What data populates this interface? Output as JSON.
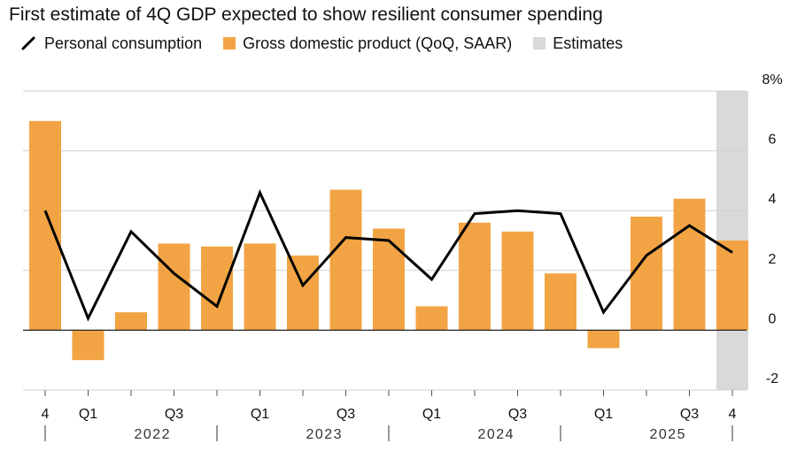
{
  "title": "First estimate of 4Q GDP expected to show resilient consumer spending",
  "legend": {
    "consumption_label": "Personal consumption",
    "gdp_label": "Gross domestic product (QoQ, SAAR)",
    "estimates_label": "Estimates"
  },
  "colors": {
    "gdp_bar": "#f2a444",
    "consumption_line": "#000000",
    "estimate_shade": "#d9d9d9",
    "gridline": "#d0d0d0",
    "zero_line": "#222222"
  },
  "chart_data": {
    "type": "bar",
    "title": "First estimate of 4Q GDP expected to show resilient consumer spending",
    "xlabel": "",
    "ylabel": "",
    "ylim": [
      -2,
      8
    ],
    "y_ticks": [
      "8%",
      "6",
      "4",
      "2",
      "0",
      "-2"
    ],
    "y_tick_values": [
      8,
      6,
      4,
      2,
      0,
      -2
    ],
    "categories": [
      "4Q21",
      "1Q22",
      "2Q22",
      "3Q22",
      "4Q22",
      "1Q23",
      "2Q23",
      "3Q23",
      "4Q23",
      "1Q24",
      "2Q24",
      "3Q24",
      "4Q24",
      "1Q25",
      "2Q25",
      "3Q25",
      "4Q25"
    ],
    "series": [
      {
        "name": "Gross domestic product (QoQ, SAAR)",
        "kind": "bar",
        "values": [
          7.0,
          -1.0,
          0.6,
          2.9,
          2.8,
          2.9,
          2.5,
          4.7,
          3.4,
          0.8,
          3.6,
          3.3,
          1.9,
          -0.6,
          3.8,
          4.4,
          3.0
        ]
      },
      {
        "name": "Personal consumption",
        "kind": "line",
        "values": [
          4.0,
          0.4,
          3.3,
          1.9,
          0.8,
          4.6,
          1.5,
          3.1,
          3.0,
          1.7,
          3.9,
          4.0,
          3.9,
          0.6,
          2.5,
          3.5,
          2.6
        ]
      }
    ],
    "estimate_categories": [
      "4Q25"
    ],
    "x_tick_labels": [
      {
        "index": 0,
        "label": "4"
      },
      {
        "index": 1,
        "label": "Q1"
      },
      {
        "index": 3,
        "label": "Q3"
      },
      {
        "index": 5,
        "label": "Q1"
      },
      {
        "index": 7,
        "label": "Q3"
      },
      {
        "index": 9,
        "label": "Q1"
      },
      {
        "index": 11,
        "label": "Q3"
      },
      {
        "index": 13,
        "label": "Q1"
      },
      {
        "index": 15,
        "label": "Q3"
      },
      {
        "index": 16,
        "label": "4"
      }
    ],
    "years": [
      {
        "label": "2022",
        "start": 1,
        "end": 4
      },
      {
        "label": "2023",
        "start": 5,
        "end": 8
      },
      {
        "label": "2024",
        "start": 9,
        "end": 12
      },
      {
        "label": "2025",
        "start": 13,
        "end": 16
      }
    ]
  }
}
